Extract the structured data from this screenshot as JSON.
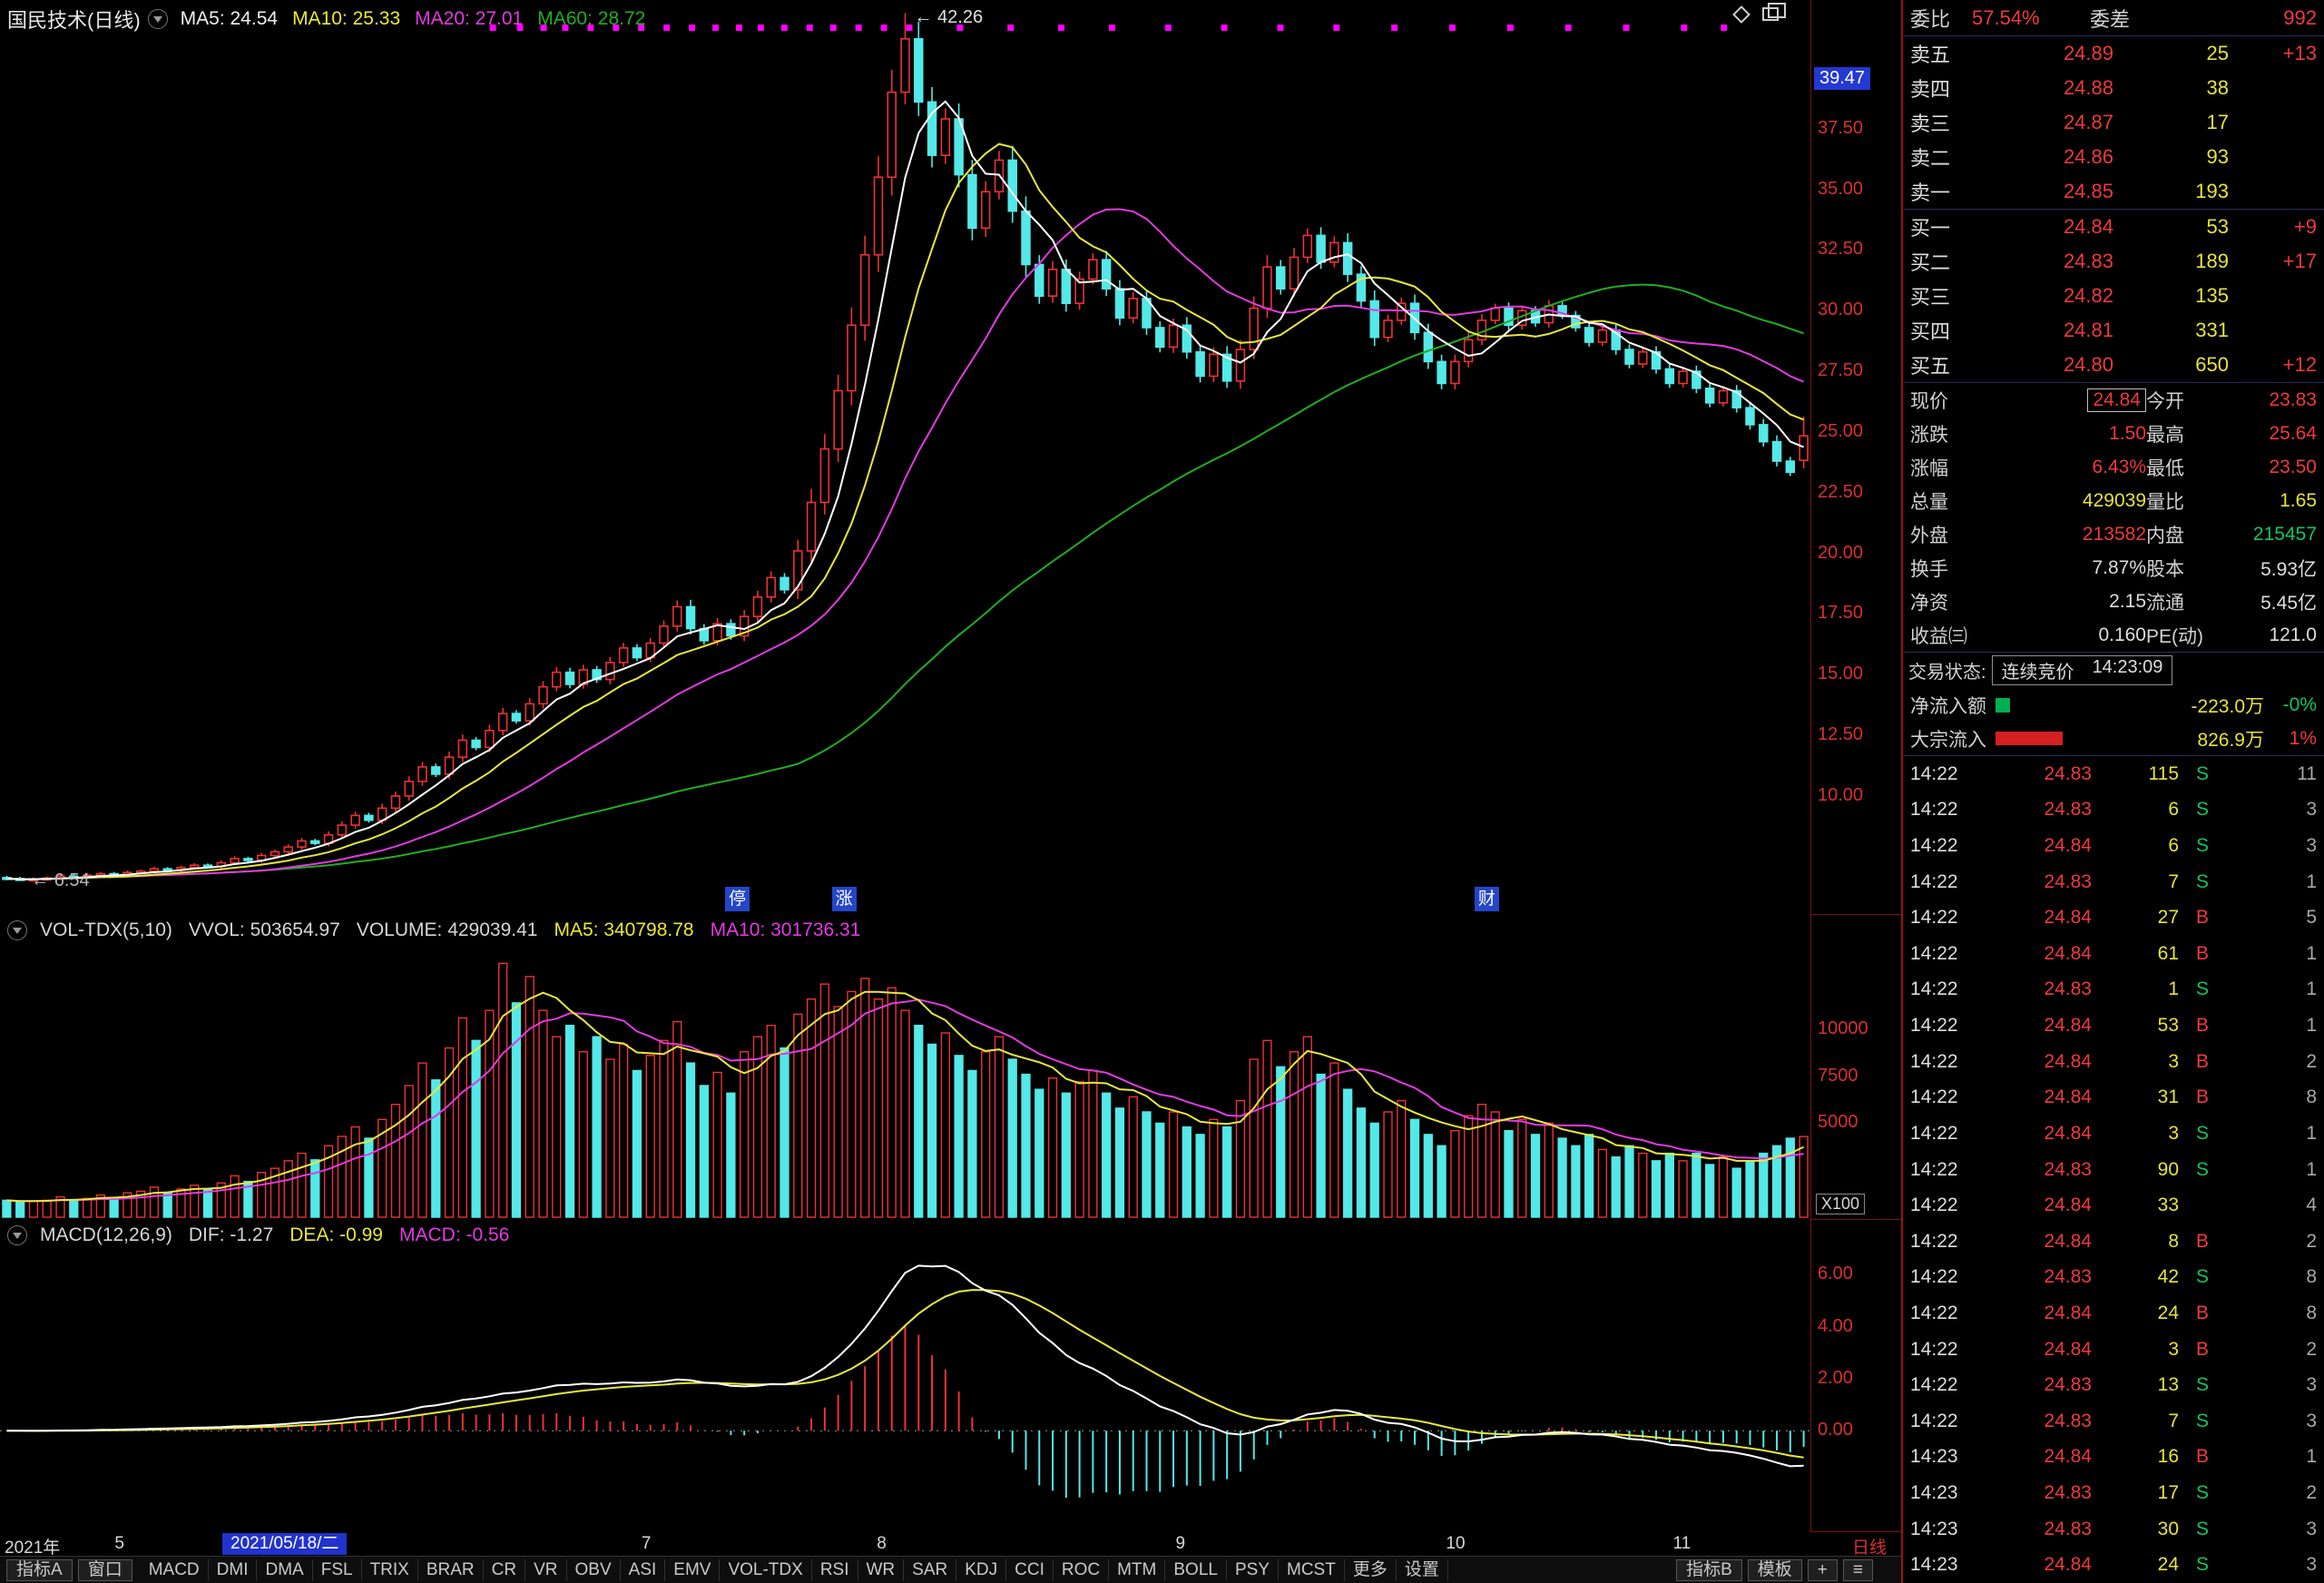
{
  "header": {
    "title": "国民技术(日线)",
    "ma_labels": [
      {
        "text": "MA5: 24.54",
        "color": "#f0f0f0"
      },
      {
        "text": "MA10: 25.33",
        "color": "#e8e83a"
      },
      {
        "text": "MA20: 27.01",
        "color": "#e23ae2"
      },
      {
        "text": "MA60: 28.72",
        "color": "#1fae1f"
      }
    ]
  },
  "vol_header": {
    "title": "VOL-TDX(5,10)",
    "vvol": "VVOL: 503654.97",
    "volume": "VOLUME: 429039.41",
    "ma5": "MA5: 340798.78",
    "ma10": "MA10: 301736.31"
  },
  "macd_header": {
    "title": "MACD(12,26,9)",
    "dif": "DIF: -1.27",
    "dea": "DEA: -0.99",
    "macd": "MACD: -0.56"
  },
  "timeline": {
    "year": "2021年",
    "date_box": "2021/05/18/二",
    "ticks": [
      {
        "label": "5",
        "x": 0.066
      },
      {
        "label": "7",
        "x": 0.357
      },
      {
        "label": "8",
        "x": 0.487
      },
      {
        "label": "9",
        "x": 0.652
      },
      {
        "label": "10",
        "x": 0.804
      },
      {
        "label": "11",
        "x": 0.929
      }
    ],
    "period": "日线"
  },
  "toolbar": {
    "left_buttons": [
      "指标A",
      "窗口"
    ],
    "indicators": [
      "MACD",
      "DMI",
      "DMA",
      "FSL",
      "TRIX",
      "BRAR",
      "CR",
      "VR",
      "OBV",
      "ASI",
      "EMV",
      "VOL-TDX",
      "RSI",
      "WR",
      "SAR",
      "KDJ",
      "CCI",
      "ROC",
      "MTM",
      "BOLL",
      "PSY",
      "MCST",
      "更多",
      "设置"
    ],
    "right_buttons": [
      "指标B",
      "模板",
      "+",
      "≡"
    ]
  },
  "order_panel": {
    "weibi_label": "委比",
    "weibi_value": "57.54%",
    "weicha_label": "委差",
    "weicha_value": "992",
    "asks": [
      {
        "label": "卖五",
        "price": "24.89",
        "qty": "25",
        "delta": "+13"
      },
      {
        "label": "卖四",
        "price": "24.88",
        "qty": "38",
        "delta": ""
      },
      {
        "label": "卖三",
        "price": "24.87",
        "qty": "17",
        "delta": ""
      },
      {
        "label": "卖二",
        "price": "24.86",
        "qty": "93",
        "delta": ""
      },
      {
        "label": "卖一",
        "price": "24.85",
        "qty": "193",
        "delta": ""
      }
    ],
    "bids": [
      {
        "label": "买一",
        "price": "24.84",
        "qty": "53",
        "delta": "+9"
      },
      {
        "label": "买二",
        "price": "24.83",
        "qty": "189",
        "delta": "+17"
      },
      {
        "label": "买三",
        "price": "24.82",
        "qty": "135",
        "delta": ""
      },
      {
        "label": "买四",
        "price": "24.81",
        "qty": "331",
        "delta": ""
      },
      {
        "label": "买五",
        "price": "24.80",
        "qty": "650",
        "delta": "+12"
      }
    ],
    "info": [
      {
        "l1": "现价",
        "v1": "24.84",
        "c1": "red",
        "boxed": true,
        "l2": "今开",
        "v2": "23.83",
        "c2": "red"
      },
      {
        "l1": "涨跌",
        "v1": "1.50",
        "c1": "red",
        "boxed": false,
        "l2": "最高",
        "v2": "25.64",
        "c2": "red"
      },
      {
        "l1": "涨幅",
        "v1": "6.43%",
        "c1": "red",
        "boxed": false,
        "l2": "最低",
        "v2": "23.50",
        "c2": "red"
      },
      {
        "l1": "总量",
        "v1": "429039",
        "c1": "yellow",
        "boxed": false,
        "l2": "量比",
        "v2": "1.65",
        "c2": "yellow"
      },
      {
        "l1": "外盘",
        "v1": "213582",
        "c1": "red",
        "boxed": false,
        "l2": "内盘",
        "v2": "215457",
        "c2": "green"
      },
      {
        "l1": "换手",
        "v1": "7.87%",
        "c1": "white",
        "boxed": false,
        "l2": "股本",
        "v2": "5.93亿",
        "c2": "white"
      },
      {
        "l1": "净资",
        "v1": "2.15",
        "c1": "white",
        "boxed": false,
        "l2": "流通",
        "v2": "5.45亿",
        "c2": "white"
      },
      {
        "l1": "收益㈢",
        "v1": "0.160",
        "c1": "white",
        "boxed": false,
        "l2": "PE(动)",
        "v2": "121.0",
        "c2": "white"
      }
    ],
    "status_label": "交易状态:",
    "status_value": "连续竞价",
    "status_time": "14:23:09",
    "flows": [
      {
        "label": "净流入额",
        "legend": "green",
        "value": "-223.0万",
        "pct": "-0%",
        "pct_color": "green"
      },
      {
        "label": "大宗流入",
        "legend": "red",
        "value": "826.9万",
        "pct": "1%",
        "pct_color": "red"
      }
    ],
    "ticks": [
      [
        "14:22",
        "24.83",
        "115",
        "S",
        "11"
      ],
      [
        "14:22",
        "24.83",
        "6",
        "S",
        "3"
      ],
      [
        "14:22",
        "24.84",
        "6",
        "S",
        "3"
      ],
      [
        "14:22",
        "24.83",
        "7",
        "S",
        "1"
      ],
      [
        "14:22",
        "24.84",
        "27",
        "B",
        "5"
      ],
      [
        "14:22",
        "24.84",
        "61",
        "B",
        "1"
      ],
      [
        "14:22",
        "24.83",
        "1",
        "S",
        "1"
      ],
      [
        "14:22",
        "24.84",
        "53",
        "B",
        "1"
      ],
      [
        "14:22",
        "24.84",
        "3",
        "B",
        "2"
      ],
      [
        "14:22",
        "24.84",
        "31",
        "B",
        "8"
      ],
      [
        "14:22",
        "24.84",
        "3",
        "S",
        "1"
      ],
      [
        "14:22",
        "24.83",
        "90",
        "S",
        "1"
      ],
      [
        "14:22",
        "24.84",
        "33",
        "",
        "4"
      ],
      [
        "14:22",
        "24.84",
        "8",
        "B",
        "2"
      ],
      [
        "14:22",
        "24.83",
        "42",
        "S",
        "8"
      ],
      [
        "14:22",
        "24.84",
        "24",
        "B",
        "8"
      ],
      [
        "14:22",
        "24.84",
        "3",
        "B",
        "2"
      ],
      [
        "14:22",
        "24.83",
        "13",
        "S",
        "3"
      ],
      [
        "14:22",
        "24.83",
        "7",
        "S",
        "3"
      ],
      [
        "14:23",
        "24.84",
        "16",
        "B",
        "1"
      ],
      [
        "14:23",
        "24.83",
        "17",
        "S",
        "2"
      ],
      [
        "14:23",
        "24.83",
        "30",
        "S",
        "3"
      ],
      [
        "14:23",
        "24.84",
        "24",
        "S",
        "3"
      ]
    ]
  },
  "chart_data": {
    "type": "candlestick",
    "title": "国民技术 日线",
    "price_axis": {
      "labels": [
        "37.50",
        "35.00",
        "32.50",
        "30.00",
        "27.50",
        "25.00",
        "22.50",
        "20.00",
        "17.50",
        "15.00",
        "12.50",
        "10.00"
      ],
      "highlight": "39.47",
      "min": 5.1,
      "max": 42.8
    },
    "closes": [
      6.6,
      6.54,
      6.58,
      6.62,
      6.7,
      6.66,
      6.74,
      6.8,
      6.76,
      6.85,
      6.9,
      7.0,
      6.95,
      7.05,
      7.15,
      7.1,
      7.25,
      7.42,
      7.35,
      7.55,
      7.7,
      7.9,
      8.15,
      8.05,
      8.4,
      8.8,
      9.2,
      9.0,
      9.5,
      10.0,
      10.6,
      11.2,
      10.9,
      11.6,
      12.3,
      12.0,
      12.7,
      13.4,
      13.1,
      13.8,
      14.5,
      15.1,
      14.6,
      15.2,
      14.8,
      15.5,
      16.1,
      15.7,
      16.3,
      17.0,
      17.8,
      16.9,
      16.4,
      17.1,
      16.6,
      17.4,
      18.2,
      19.0,
      18.5,
      20.1,
      22.1,
      24.3,
      26.7,
      29.4,
      32.3,
      35.5,
      39.0,
      41.2,
      38.6,
      36.4,
      37.9,
      35.6,
      33.4,
      34.9,
      36.2,
      34.1,
      31.9,
      30.6,
      31.7,
      30.3,
      31.3,
      32.1,
      30.9,
      29.7,
      30.5,
      29.3,
      28.5,
      29.4,
      28.3,
      27.3,
      28.2,
      27.1,
      28.4,
      30.1,
      31.8,
      30.9,
      32.2,
      33.1,
      32.0,
      32.8,
      31.5,
      30.4,
      28.9,
      29.6,
      30.3,
      29.1,
      27.9,
      27.0,
      27.9,
      28.8,
      29.6,
      30.1,
      29.4,
      30.0,
      29.5,
      30.2,
      29.8,
      29.3,
      28.7,
      29.2,
      28.4,
      27.8,
      28.3,
      27.6,
      27.0,
      27.5,
      26.8,
      26.2,
      26.7,
      26.0,
      25.3,
      24.6,
      23.8,
      23.34,
      24.84
    ],
    "volumes": [
      900,
      820,
      860,
      900,
      1080,
      940,
      1000,
      1180,
      1020,
      1300,
      1380,
      1600,
      1320,
      1500,
      1700,
      1480,
      1820,
      2200,
      1900,
      2380,
      2600,
      3000,
      3400,
      3050,
      3800,
      4300,
      4800,
      4200,
      5200,
      6000,
      7000,
      8200,
      7300,
      9000,
      10600,
      9400,
      11000,
      13500,
      11400,
      12800,
      11000,
      9600,
      10200,
      8800,
      9600,
      8400,
      9200,
      7800,
      8600,
      9400,
      10400,
      8200,
      7000,
      7700,
      6600,
      8800,
      9600,
      10200,
      9000,
      10800,
      11600,
      12400,
      11200,
      12000,
      12700,
      11600,
      12200,
      11000,
      10200,
      9200,
      9800,
      8600,
      7800,
      8800,
      9600,
      8400,
      7600,
      6800,
      7400,
      6600,
      7200,
      7800,
      6600,
      5800,
      6400,
      5600,
      5000,
      5600,
      4800,
      4400,
      5200,
      4800,
      6200,
      8400,
      9400,
      8000,
      8800,
      9600,
      7600,
      8200,
      6800,
      5800,
      5000,
      5600,
      6200,
      5200,
      4400,
      3800,
      4600,
      5400,
      6000,
      5600,
      4600,
      5200,
      4400,
      5000,
      4200,
      3800,
      4400,
      3600,
      3200,
      3800,
      3400,
      3000,
      3400,
      3000,
      3400,
      2800,
      3200,
      2600,
      3000,
      3400,
      3800,
      4200,
      4290
    ],
    "last_candle": {
      "open": 23.83,
      "high": 25.64,
      "low": 23.5,
      "close": 24.84
    },
    "annotations": {
      "peak_text": "← 42.26",
      "peak_value": "42.26",
      "trough_text": "← 6.54",
      "trough_value": "6.54"
    },
    "event_flags": [
      {
        "label": "停",
        "x": 0.407
      },
      {
        "label": "涨",
        "x": 0.466
      },
      {
        "label": "财",
        "x": 0.821
      }
    ],
    "event_markers": [
      0.272,
      0.287,
      0.3,
      0.312,
      0.326,
      0.34,
      0.354,
      0.368,
      0.382,
      0.395,
      0.408,
      0.42,
      0.433,
      0.447,
      0.46,
      0.474,
      0.488,
      0.502,
      0.53,
      0.558,
      0.586,
      0.614,
      0.645,
      0.676,
      0.707,
      0.738,
      0.77,
      0.802,
      0.834,
      0.866,
      0.898,
      0.93,
      0.952
    ],
    "vol_axis": {
      "labels": [
        "10000",
        "7500",
        "5000"
      ],
      "unit": "X100",
      "max": 14000
    },
    "macd_axis": {
      "labels": [
        "6.00",
        "4.00",
        "2.00",
        "0.00"
      ],
      "min": -3.9,
      "max": 8.1
    }
  }
}
